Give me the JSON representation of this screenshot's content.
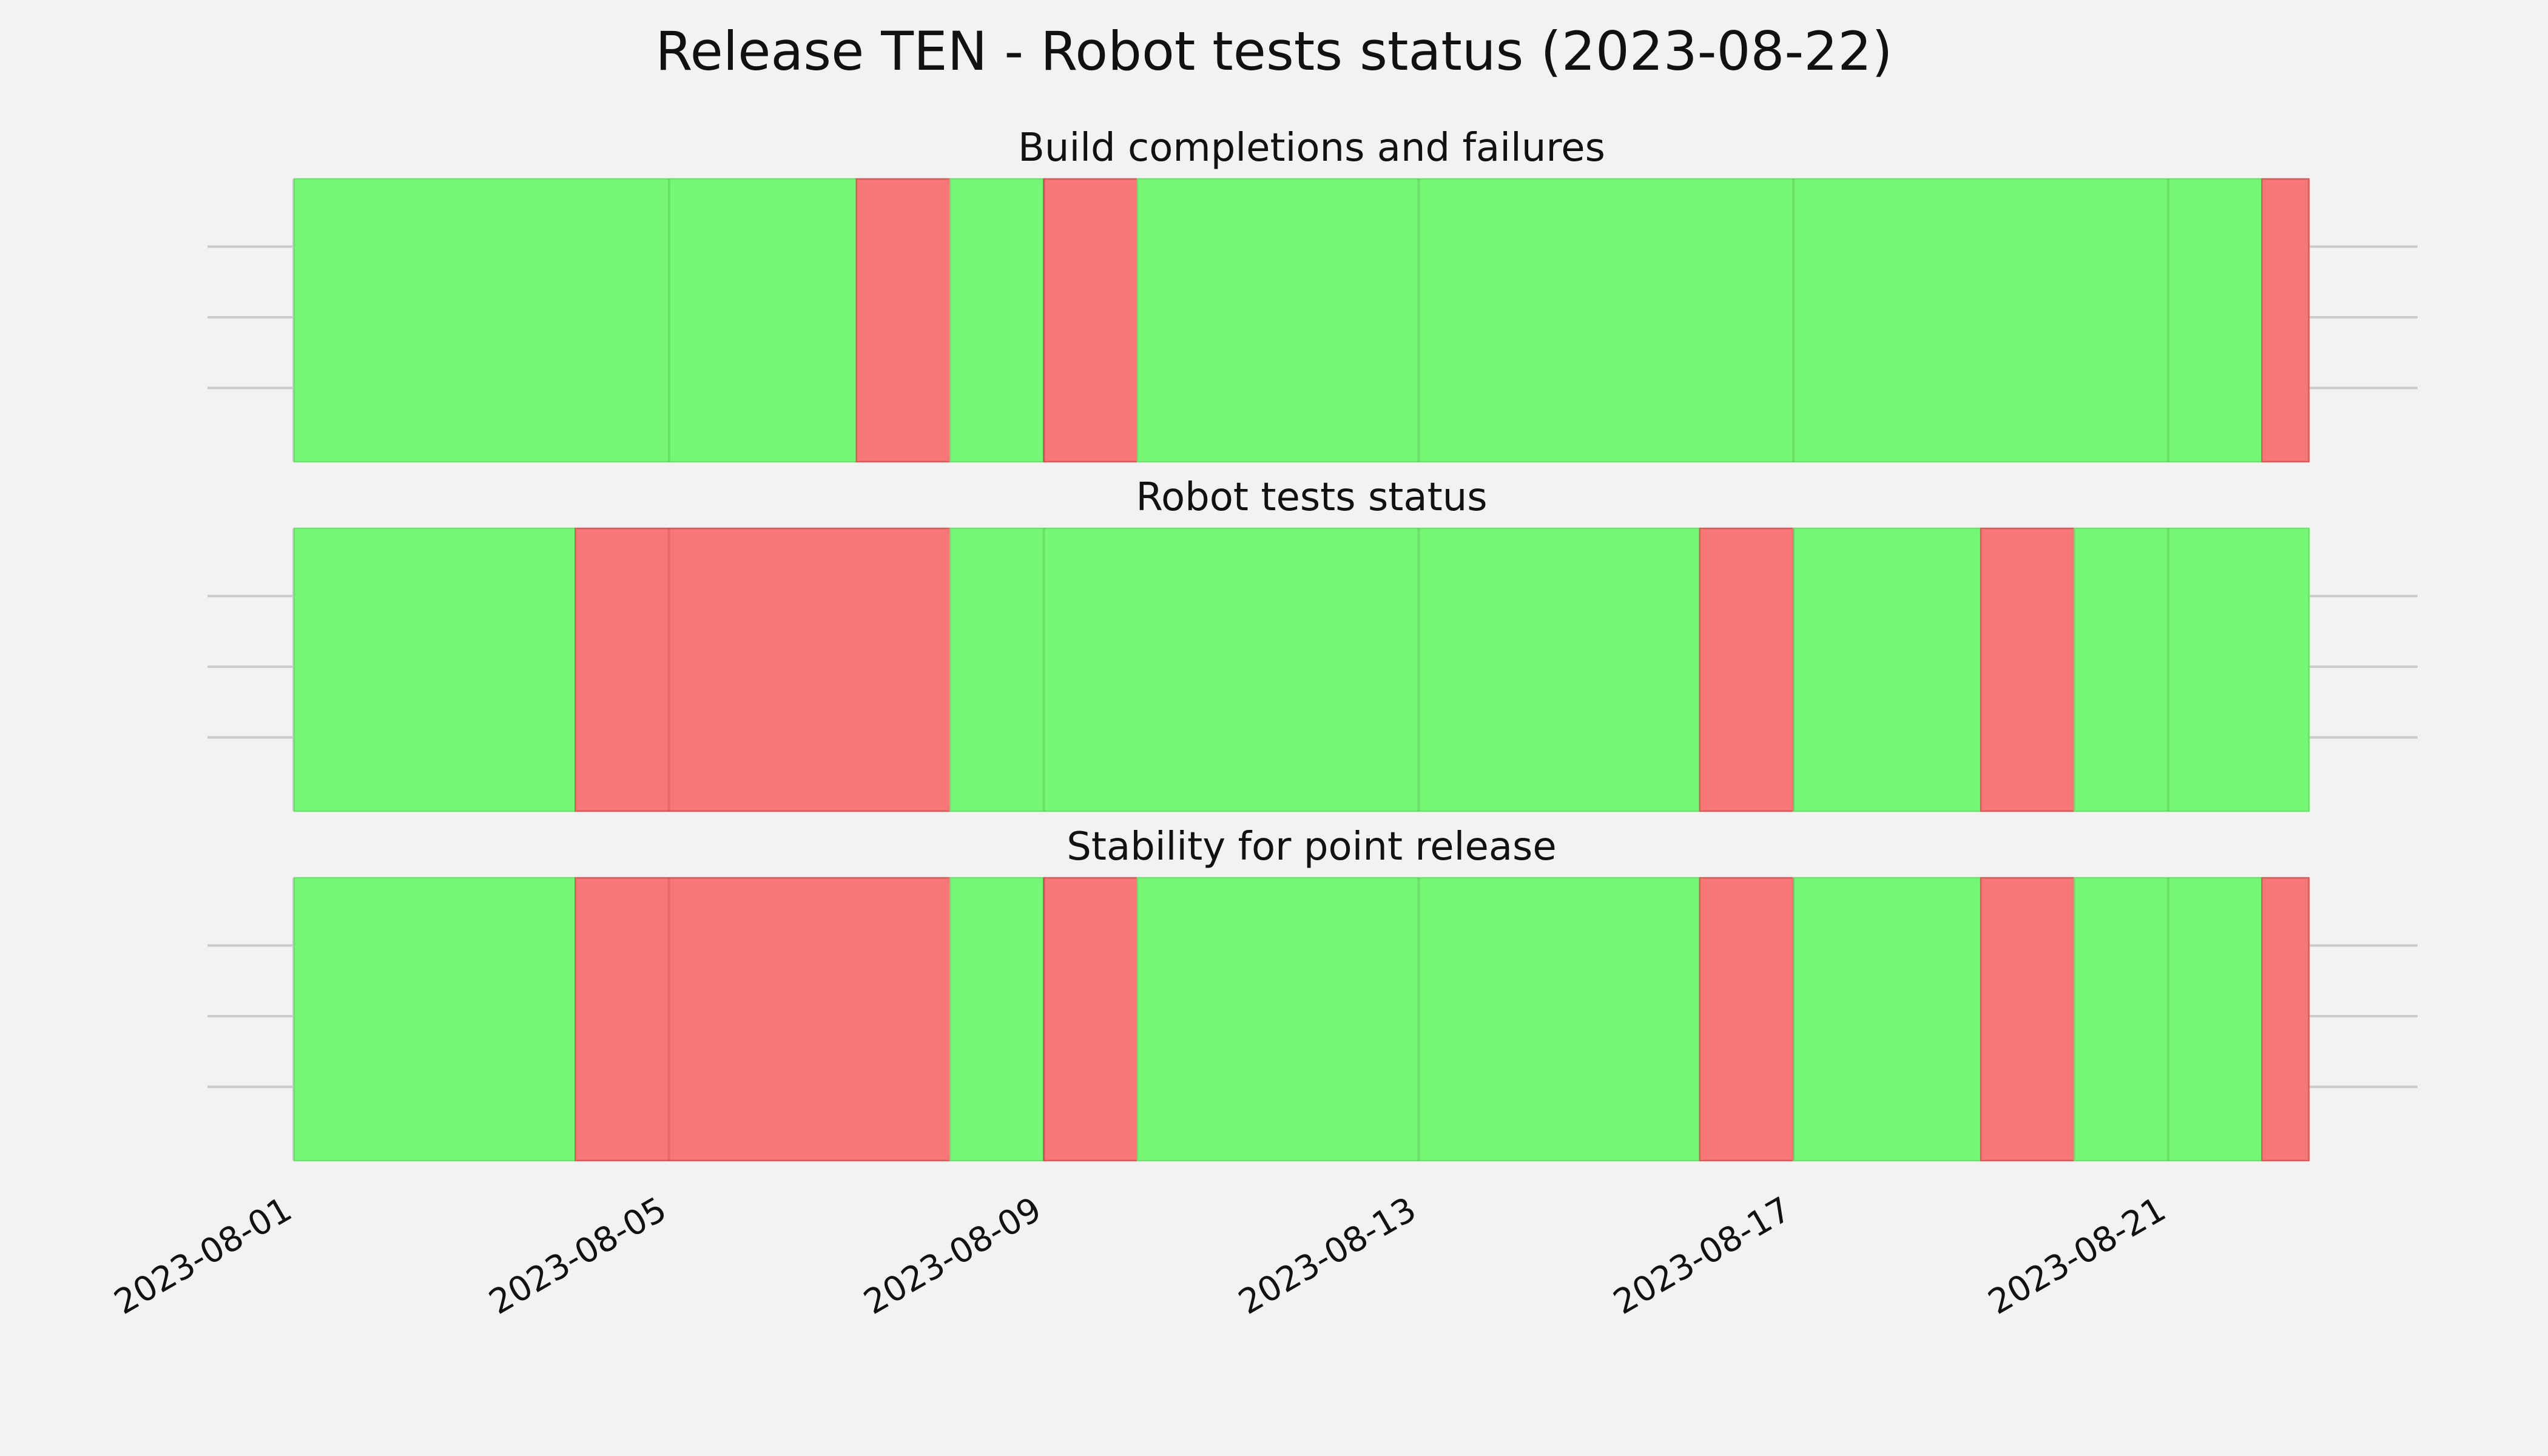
{
  "chart_data": {
    "type": "bar",
    "title": "Release TEN - Robot tests status (2023-08-22)",
    "xlabel": "",
    "ylabel": "",
    "x_range": [
      "2023-08-01",
      "2023-08-23"
    ],
    "x_ticks": [
      "2023-08-01",
      "2023-08-05",
      "2023-08-09",
      "2023-08-13",
      "2023-08-17",
      "2023-08-21"
    ],
    "grid": true,
    "colors": {
      "pass": "#76f776",
      "fail": "#f77777",
      "background": "#f2f2f2",
      "grid": "#cbcbcb"
    },
    "panels": [
      {
        "title": "Build completions and failures",
        "segments": [
          {
            "start": "2023-08-01",
            "end": "2023-08-07",
            "status": "pass"
          },
          {
            "start": "2023-08-07",
            "end": "2023-08-08",
            "status": "fail"
          },
          {
            "start": "2023-08-08",
            "end": "2023-08-09",
            "status": "pass"
          },
          {
            "start": "2023-08-09",
            "end": "2023-08-10",
            "status": "fail"
          },
          {
            "start": "2023-08-10",
            "end": "2023-08-22",
            "status": "pass"
          },
          {
            "start": "2023-08-22",
            "end": "2023-08-22T12:00",
            "status": "fail"
          }
        ]
      },
      {
        "title": "Robot tests status",
        "segments": [
          {
            "start": "2023-08-01",
            "end": "2023-08-04",
            "status": "pass"
          },
          {
            "start": "2023-08-04",
            "end": "2023-08-08",
            "status": "fail"
          },
          {
            "start": "2023-08-08",
            "end": "2023-08-16",
            "status": "pass"
          },
          {
            "start": "2023-08-16",
            "end": "2023-08-17",
            "status": "fail"
          },
          {
            "start": "2023-08-17",
            "end": "2023-08-19",
            "status": "pass"
          },
          {
            "start": "2023-08-19",
            "end": "2023-08-20",
            "status": "fail"
          },
          {
            "start": "2023-08-20",
            "end": "2023-08-22T12:00",
            "status": "pass"
          }
        ]
      },
      {
        "title": "Stability for point release",
        "segments": [
          {
            "start": "2023-08-01",
            "end": "2023-08-04",
            "status": "pass"
          },
          {
            "start": "2023-08-04",
            "end": "2023-08-08",
            "status": "fail"
          },
          {
            "start": "2023-08-08",
            "end": "2023-08-09",
            "status": "pass"
          },
          {
            "start": "2023-08-09",
            "end": "2023-08-10",
            "status": "fail"
          },
          {
            "start": "2023-08-10",
            "end": "2023-08-16",
            "status": "pass"
          },
          {
            "start": "2023-08-16",
            "end": "2023-08-17",
            "status": "fail"
          },
          {
            "start": "2023-08-17",
            "end": "2023-08-19",
            "status": "pass"
          },
          {
            "start": "2023-08-19",
            "end": "2023-08-20",
            "status": "fail"
          },
          {
            "start": "2023-08-20",
            "end": "2023-08-22",
            "status": "pass"
          },
          {
            "start": "2023-08-22",
            "end": "2023-08-22T12:00",
            "status": "fail"
          }
        ]
      }
    ]
  }
}
